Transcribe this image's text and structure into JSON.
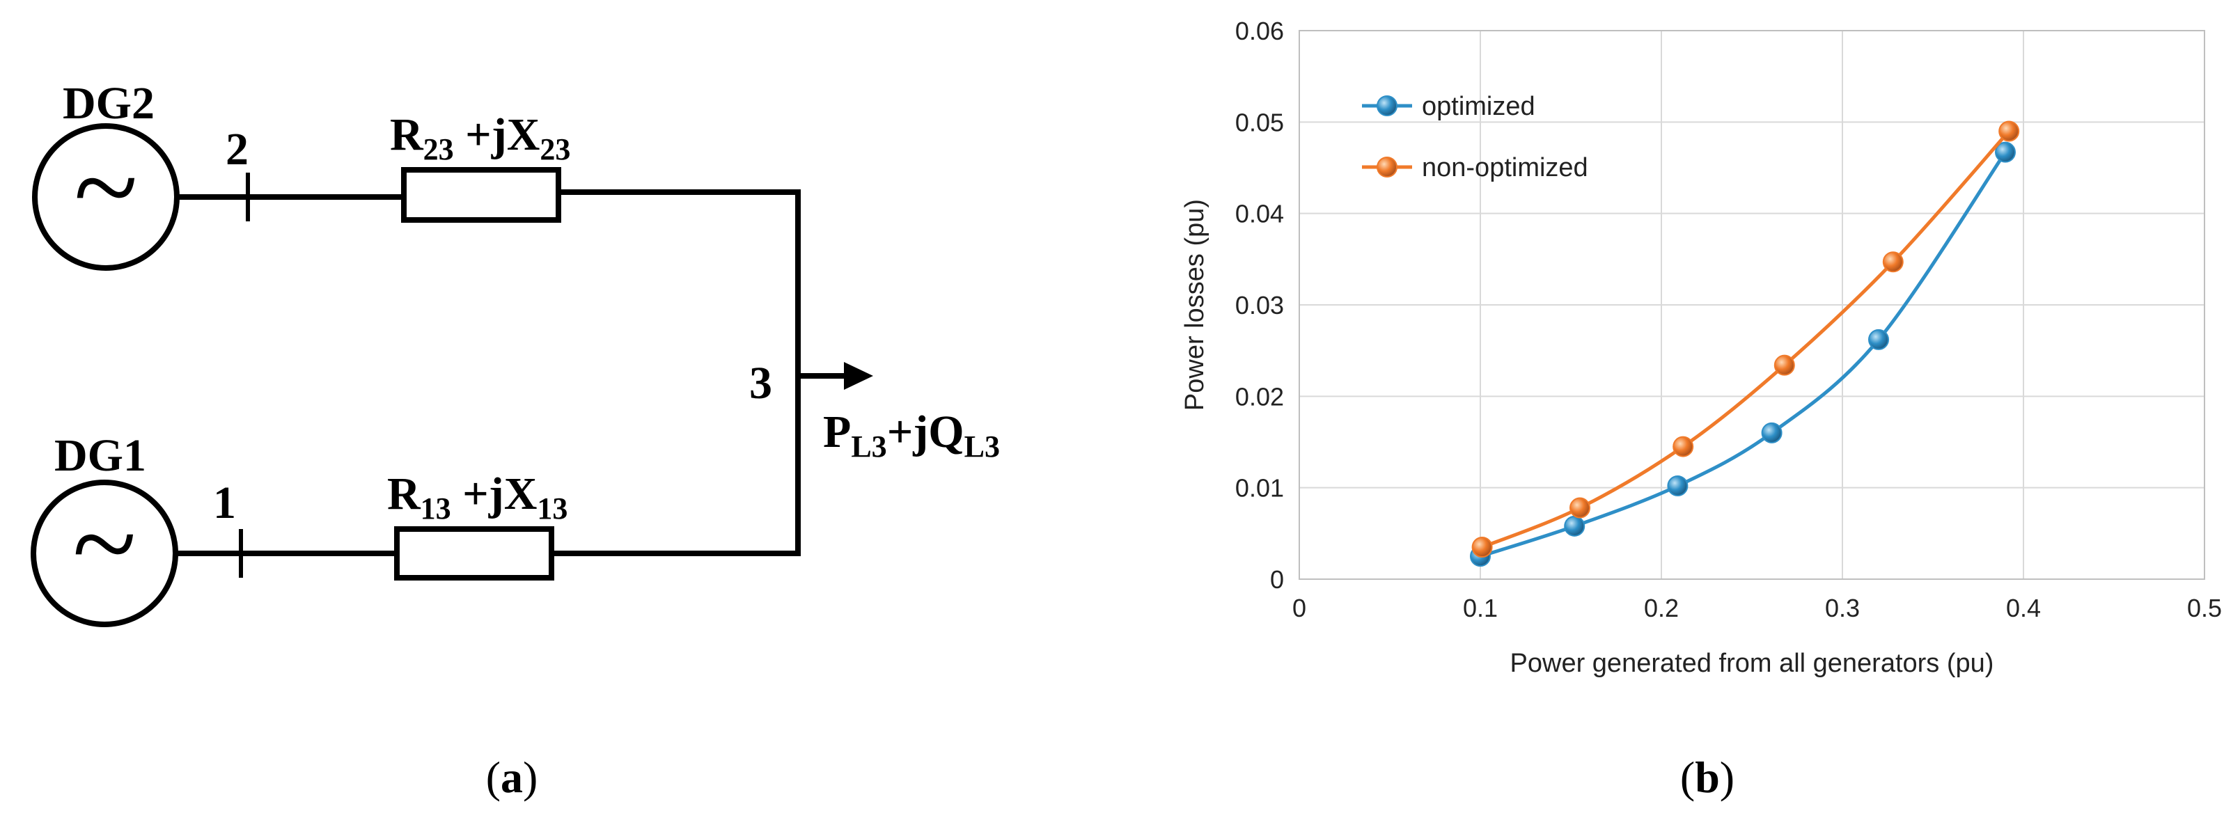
{
  "panel_a": {
    "gen_top": {
      "name": "DG2",
      "symbol": "~"
    },
    "gen_bottom": {
      "name": "DG1",
      "symbol": "~"
    },
    "bus_2": "2",
    "bus_1": "1",
    "bus_3": "3",
    "line_23": {
      "main": "R",
      "sub1": "23",
      "mid": " +jX",
      "sub2": "23"
    },
    "line_13": {
      "main": "R",
      "sub1": "13",
      "mid": " +jX",
      "sub2": "13"
    },
    "load": {
      "p": "P",
      "p_sub": "L3",
      "q": "+jQ",
      "q_sub": "L3"
    },
    "caption": {
      "open": "(",
      "letter": "a",
      "close": ")"
    }
  },
  "panel_b": {
    "caption": {
      "open": "(",
      "letter": "b",
      "close": ")"
    },
    "colors": {
      "optimized": "#2E8FC7",
      "non_optimized": "#F07A2A",
      "grid": "#D9D9D9",
      "axis": "#BFBFBF"
    }
  },
  "chart_data": {
    "type": "scatter",
    "title": "",
    "xlabel": "Power generated from all generators (pu)",
    "ylabel": "Power losses (pu)",
    "xlim": [
      0,
      0.5
    ],
    "ylim": [
      0,
      0.06
    ],
    "x_ticks": [
      "0",
      "0.1",
      "0.2",
      "0.3",
      "0.4",
      "0.5"
    ],
    "y_ticks": [
      "0",
      "0.01",
      "0.02",
      "0.03",
      "0.04",
      "0.05",
      "0.06"
    ],
    "grid": true,
    "legend_position": "top-left",
    "series": [
      {
        "name": "optimized",
        "points": [
          [
            0.1,
            0.0025
          ],
          [
            0.152,
            0.0058
          ],
          [
            0.209,
            0.0102
          ],
          [
            0.261,
            0.016
          ],
          [
            0.32,
            0.0262
          ],
          [
            0.39,
            0.0467
          ]
        ]
      },
      {
        "name": "non-optimized",
        "points": [
          [
            0.101,
            0.0035
          ],
          [
            0.155,
            0.0078
          ],
          [
            0.212,
            0.0145
          ],
          [
            0.268,
            0.0234
          ],
          [
            0.328,
            0.0347
          ],
          [
            0.392,
            0.049
          ]
        ]
      }
    ]
  }
}
